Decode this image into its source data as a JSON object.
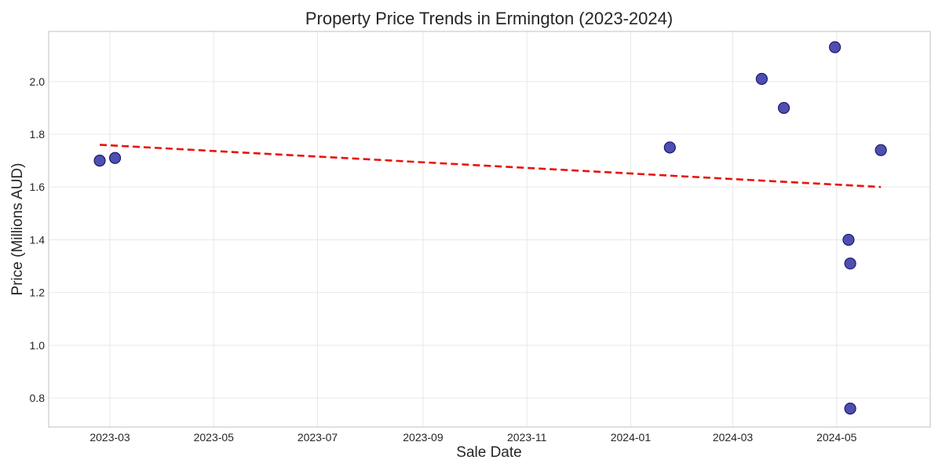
{
  "chart_data": {
    "type": "scatter",
    "title": "Property Price Trends in Ermington (2023-2024)",
    "xlabel": "Sale Date",
    "ylabel": "Price (Millions AUD)",
    "x_axis_kind": "date",
    "xlim": [
      "2023-01-24",
      "2024-06-25"
    ],
    "ylim": [
      0.69,
      2.19
    ],
    "x_ticks": [
      "2023-03-01",
      "2023-05-01",
      "2023-07-01",
      "2023-09-01",
      "2023-11-01",
      "2024-01-01",
      "2024-03-01",
      "2024-05-01"
    ],
    "x_tick_labels": [
      "2023-03",
      "2023-05",
      "2023-07",
      "2023-09",
      "2023-11",
      "2024-01",
      "2024-03",
      "2024-05"
    ],
    "y_ticks": [
      0.8,
      1.0,
      1.2,
      1.4,
      1.6,
      1.8,
      2.0
    ],
    "y_tick_labels": [
      "0.8",
      "1.0",
      "1.2",
      "1.4",
      "1.6",
      "1.8",
      "2.0"
    ],
    "grid": true,
    "points": [
      {
        "x": "2023-02-23",
        "y": 1.7
      },
      {
        "x": "2023-03-04",
        "y": 1.71
      },
      {
        "x": "2024-01-24",
        "y": 1.75
      },
      {
        "x": "2024-03-18",
        "y": 2.01
      },
      {
        "x": "2024-03-31",
        "y": 1.9
      },
      {
        "x": "2024-04-30",
        "y": 2.13
      },
      {
        "x": "2024-05-08",
        "y": 1.4
      },
      {
        "x": "2024-05-09",
        "y": 1.31
      },
      {
        "x": "2024-05-09",
        "y": 0.76
      },
      {
        "x": "2024-05-27",
        "y": 1.74
      }
    ],
    "trendline": {
      "type": "linear",
      "start": {
        "x": "2023-02-23",
        "y": 1.76
      },
      "end": {
        "x": "2024-05-27",
        "y": 1.6
      },
      "color": "#e8120c"
    },
    "colors": {
      "point": "#3c3ca8",
      "point_edge": "#1a1a6e",
      "trend": "#e8120c"
    }
  }
}
